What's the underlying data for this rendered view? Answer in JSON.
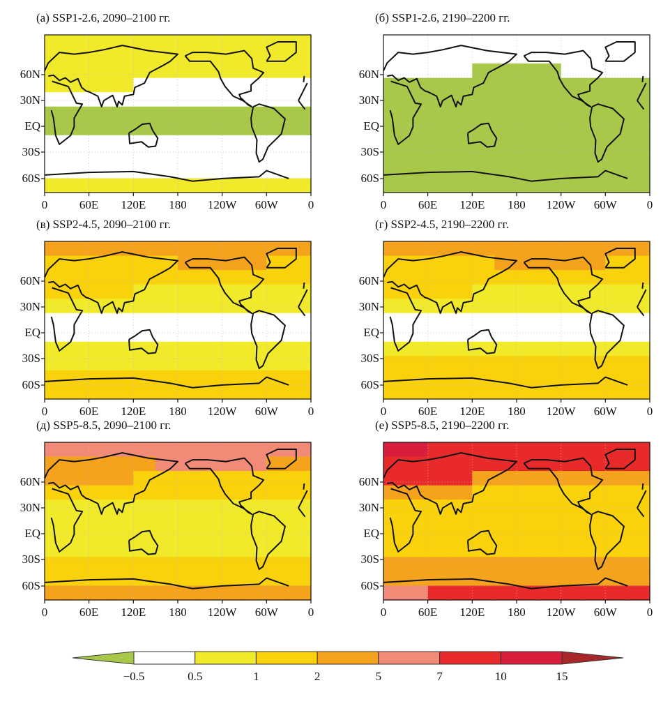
{
  "panels": [
    {
      "title": "(а) SSP1-2.6, 2090–2100 гг.",
      "bands": [
        [
          2,
          2,
          2,
          2,
          2,
          2,
          2,
          2,
          2,
          2,
          2,
          2
        ],
        [
          2,
          2,
          2,
          2,
          2,
          2,
          2,
          2,
          2,
          2,
          2,
          2
        ],
        [
          2,
          2,
          2,
          2,
          2,
          2,
          2,
          2,
          2,
          2,
          2,
          2
        ],
        [
          2,
          2,
          2,
          2,
          1,
          1,
          1,
          1,
          1,
          1,
          1,
          1
        ],
        [
          1,
          1,
          1,
          1,
          1,
          1,
          1,
          1,
          1,
          1,
          1,
          1
        ],
        [
          0,
          0,
          0,
          0,
          0,
          0,
          0,
          0,
          0,
          0,
          0,
          0
        ],
        [
          0,
          0,
          0,
          0,
          0,
          0,
          0,
          0,
          0,
          0,
          0,
          0
        ],
        [
          1,
          1,
          1,
          1,
          1,
          1,
          1,
          1,
          1,
          1,
          1,
          1
        ],
        [
          1,
          1,
          1,
          1,
          1,
          1,
          1,
          1,
          1,
          1,
          1,
          1
        ],
        [
          1,
          1,
          1,
          1,
          1,
          1,
          1,
          1,
          1,
          1,
          1,
          1
        ],
        [
          2,
          2,
          2,
          2,
          2,
          2,
          2,
          2,
          2,
          2,
          2,
          2
        ]
      ]
    },
    {
      "title": "(б) SSP1-2.6, 2190–2200 гг.",
      "bands": [
        [
          1,
          1,
          1,
          1,
          1,
          1,
          1,
          1,
          1,
          1,
          1,
          1
        ],
        [
          1,
          1,
          1,
          1,
          1,
          1,
          1,
          1,
          1,
          1,
          1,
          1
        ],
        [
          1,
          1,
          1,
          1,
          0,
          0,
          0,
          0,
          1,
          1,
          1,
          1
        ],
        [
          0,
          0,
          0,
          0,
          0,
          0,
          0,
          0,
          0,
          0,
          0,
          0
        ],
        [
          0,
          0,
          0,
          0,
          0,
          0,
          0,
          0,
          0,
          0,
          0,
          0
        ],
        [
          0,
          0,
          0,
          0,
          0,
          0,
          0,
          0,
          0,
          0,
          0,
          0
        ],
        [
          0,
          0,
          0,
          0,
          0,
          0,
          0,
          0,
          0,
          0,
          0,
          0
        ],
        [
          0,
          0,
          0,
          0,
          0,
          0,
          0,
          0,
          0,
          0,
          0,
          0
        ],
        [
          0,
          0,
          0,
          0,
          0,
          0,
          0,
          0,
          0,
          0,
          0,
          0
        ],
        [
          0,
          0,
          0,
          0,
          0,
          0,
          0,
          0,
          0,
          0,
          0,
          0
        ],
        [
          0,
          0,
          0,
          0,
          0,
          0,
          0,
          0,
          0,
          0,
          0,
          0
        ]
      ]
    },
    {
      "title": "(в) SSP2-4.5, 2090–2100 гг.",
      "bands": [
        [
          4,
          4,
          4,
          4,
          4,
          4,
          4,
          4,
          4,
          4,
          4,
          4
        ],
        [
          3,
          3,
          3,
          3,
          3,
          3,
          4,
          4,
          4,
          4,
          3,
          3
        ],
        [
          3,
          3,
          3,
          3,
          3,
          3,
          3,
          3,
          3,
          3,
          3,
          3
        ],
        [
          3,
          3,
          3,
          3,
          2,
          2,
          2,
          2,
          2,
          2,
          2,
          2
        ],
        [
          2,
          2,
          2,
          2,
          2,
          2,
          2,
          2,
          2,
          2,
          2,
          2
        ],
        [
          1,
          1,
          1,
          1,
          1,
          1,
          1,
          1,
          1,
          1,
          1,
          1
        ],
        [
          1,
          1,
          1,
          1,
          1,
          1,
          1,
          1,
          1,
          1,
          1,
          1
        ],
        [
          2,
          2,
          2,
          2,
          2,
          2,
          2,
          2,
          2,
          2,
          2,
          2
        ],
        [
          2,
          2,
          2,
          2,
          2,
          2,
          2,
          2,
          2,
          2,
          2,
          2
        ],
        [
          3,
          3,
          3,
          3,
          3,
          3,
          3,
          3,
          3,
          3,
          3,
          3
        ],
        [
          3,
          3,
          3,
          3,
          3,
          3,
          3,
          3,
          3,
          3,
          3,
          3
        ]
      ]
    },
    {
      "title": "(г) SSP2-4.5, 2190–2200 гг.",
      "bands": [
        [
          4,
          4,
          4,
          4,
          4,
          4,
          4,
          4,
          4,
          4,
          4,
          4
        ],
        [
          3,
          3,
          3,
          3,
          3,
          4,
          4,
          4,
          4,
          4,
          3,
          3
        ],
        [
          3,
          3,
          3,
          3,
          3,
          3,
          3,
          3,
          3,
          3,
          3,
          3
        ],
        [
          3,
          3,
          3,
          3,
          2,
          2,
          2,
          2,
          2,
          2,
          2,
          2
        ],
        [
          2,
          2,
          2,
          2,
          2,
          2,
          2,
          2,
          2,
          2,
          2,
          2
        ],
        [
          1,
          1,
          1,
          1,
          1,
          1,
          1,
          1,
          1,
          1,
          1,
          1
        ],
        [
          1,
          1,
          1,
          1,
          1,
          1,
          1,
          1,
          1,
          1,
          1,
          1
        ],
        [
          2,
          2,
          2,
          2,
          2,
          2,
          2,
          2,
          2,
          2,
          2,
          2
        ],
        [
          3,
          3,
          3,
          3,
          3,
          3,
          3,
          3,
          3,
          3,
          3,
          3
        ],
        [
          3,
          3,
          3,
          3,
          3,
          3,
          3,
          3,
          3,
          3,
          3,
          3
        ],
        [
          3,
          3,
          3,
          3,
          3,
          3,
          3,
          3,
          3,
          3,
          3,
          3
        ]
      ]
    },
    {
      "title": "(д) SSP5-8.5, 2090–2100 гг.",
      "bands": [
        [
          5,
          5,
          5,
          5,
          5,
          5,
          5,
          5,
          5,
          5,
          5,
          5
        ],
        [
          4,
          4,
          4,
          4,
          4,
          5,
          5,
          5,
          5,
          5,
          4,
          4
        ],
        [
          4,
          4,
          4,
          4,
          3,
          3,
          3,
          3,
          3,
          3,
          3,
          3
        ],
        [
          3,
          3,
          3,
          3,
          3,
          3,
          3,
          3,
          3,
          3,
          3,
          3
        ],
        [
          2,
          2,
          2,
          2,
          2,
          2,
          2,
          2,
          2,
          2,
          2,
          2
        ],
        [
          2,
          2,
          2,
          2,
          2,
          2,
          2,
          2,
          2,
          2,
          2,
          2
        ],
        [
          2,
          2,
          2,
          2,
          2,
          2,
          2,
          2,
          2,
          2,
          2,
          2
        ],
        [
          2,
          2,
          2,
          2,
          2,
          2,
          2,
          2,
          2,
          2,
          2,
          2
        ],
        [
          3,
          3,
          3,
          3,
          3,
          3,
          3,
          3,
          3,
          3,
          3,
          3
        ],
        [
          3,
          3,
          3,
          3,
          3,
          3,
          3,
          3,
          3,
          3,
          3,
          3
        ],
        [
          4,
          4,
          4,
          4,
          4,
          4,
          4,
          4,
          4,
          4,
          4,
          4
        ]
      ]
    },
    {
      "title": "(е) SSP5-8.5, 2190–2200 гг.",
      "bands": [
        [
          7,
          7,
          6,
          6,
          6,
          6,
          6,
          6,
          6,
          6,
          6,
          6
        ],
        [
          6,
          6,
          6,
          6,
          6,
          6,
          6,
          6,
          6,
          6,
          6,
          6
        ],
        [
          6,
          6,
          6,
          6,
          4,
          4,
          4,
          4,
          4,
          4,
          4,
          4
        ],
        [
          4,
          4,
          4,
          4,
          3,
          3,
          3,
          3,
          3,
          3,
          3,
          3
        ],
        [
          3,
          3,
          3,
          3,
          3,
          3,
          3,
          3,
          3,
          3,
          3,
          3
        ],
        [
          3,
          3,
          3,
          3,
          3,
          3,
          3,
          3,
          3,
          3,
          3,
          3
        ],
        [
          3,
          3,
          3,
          3,
          3,
          3,
          3,
          3,
          3,
          3,
          3,
          3
        ],
        [
          3,
          3,
          3,
          3,
          3,
          3,
          3,
          3,
          3,
          3,
          3,
          3
        ],
        [
          4,
          4,
          4,
          4,
          4,
          4,
          4,
          4,
          4,
          4,
          4,
          4
        ],
        [
          4,
          4,
          4,
          4,
          4,
          4,
          4,
          4,
          4,
          4,
          4,
          4
        ],
        [
          5,
          5,
          6,
          6,
          6,
          6,
          6,
          6,
          6,
          6,
          6,
          6
        ]
      ]
    }
  ],
  "lat_labels": [
    "60N",
    "30N",
    "EQ",
    "30S",
    "60S"
  ],
  "lon_labels": [
    "0",
    "60E",
    "120E",
    "180",
    "120W",
    "60W",
    "0"
  ],
  "colorbar": {
    "colors": [
      "#a8c84a",
      "#ffffff",
      "#f0ea2a",
      "#fad20c",
      "#f5a21c",
      "#f28a78",
      "#e82a2a",
      "#d81e3c",
      "#a8282a"
    ],
    "labels": [
      "−0.5",
      "0.5",
      "1",
      "2",
      "5",
      "7",
      "10",
      "15"
    ]
  }
}
